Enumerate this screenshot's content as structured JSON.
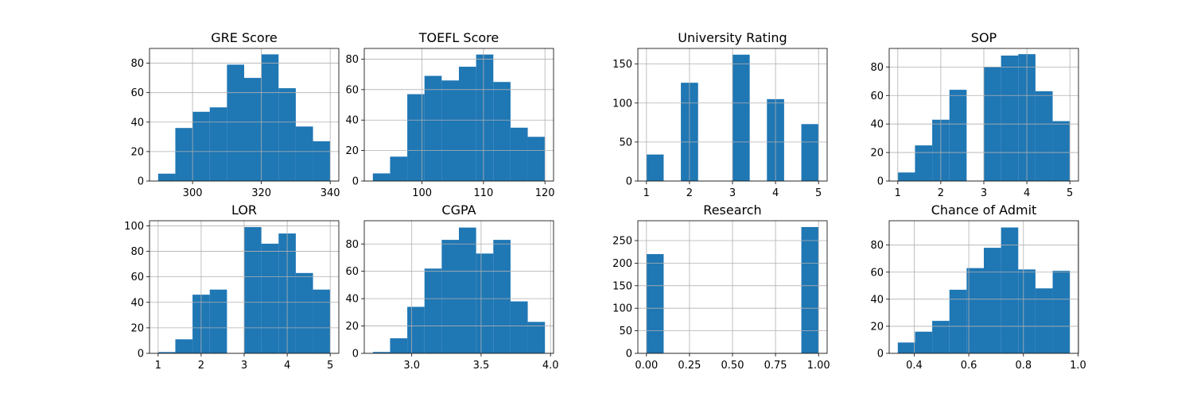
{
  "chart_data": [
    {
      "type": "bar",
      "title": "GRE Score",
      "bins": [
        [
          290,
          295
        ],
        [
          295,
          300
        ],
        [
          300,
          305
        ],
        [
          305,
          310
        ],
        [
          310,
          315
        ],
        [
          315,
          320
        ],
        [
          320,
          325
        ],
        [
          325,
          330
        ],
        [
          330,
          335
        ],
        [
          335,
          340
        ]
      ],
      "values": [
        5,
        36,
        47,
        50,
        79,
        70,
        86,
        63,
        37,
        27
      ],
      "xlim": [
        287.5,
        342.5
      ],
      "ylim": [
        0,
        90
      ],
      "xticks": [
        300,
        320,
        340
      ],
      "yticks": [
        0,
        20,
        40,
        60,
        80
      ],
      "xtick_labels": [
        "300",
        "320",
        "340"
      ],
      "ytick_labels": [
        "0",
        "20",
        "40",
        "60",
        "80"
      ],
      "grid": true,
      "color": "#1f77b4"
    },
    {
      "type": "bar",
      "title": "TOEFL Score",
      "bins": [
        [
          92,
          94.8
        ],
        [
          94.8,
          97.6
        ],
        [
          97.6,
          100.4
        ],
        [
          100.4,
          103.2
        ],
        [
          103.2,
          106
        ],
        [
          106,
          108.8
        ],
        [
          108.8,
          111.6
        ],
        [
          111.6,
          114.4
        ],
        [
          114.4,
          117.2
        ],
        [
          117.2,
          120
        ]
      ],
      "values": [
        5,
        16,
        57,
        69,
        66,
        75,
        83,
        65,
        35,
        29
      ],
      "xlim": [
        90.6,
        121.4
      ],
      "ylim": [
        0,
        87
      ],
      "xticks": [
        100,
        110,
        120
      ],
      "yticks": [
        0,
        20,
        40,
        60,
        80
      ],
      "xtick_labels": [
        "100",
        "110",
        "120"
      ],
      "ytick_labels": [
        "0",
        "20",
        "40",
        "60",
        "80"
      ],
      "grid": true,
      "color": "#1f77b4"
    },
    {
      "type": "bar",
      "title": "University Rating",
      "bins": [
        [
          1,
          1.4
        ],
        [
          1.4,
          1.8
        ],
        [
          1.8,
          2.2
        ],
        [
          2.2,
          2.6
        ],
        [
          2.6,
          3
        ],
        [
          3,
          3.4
        ],
        [
          3.4,
          3.8
        ],
        [
          3.8,
          4.2
        ],
        [
          4.2,
          4.6
        ],
        [
          4.6,
          5
        ]
      ],
      "values": [
        34,
        0,
        126,
        0,
        0,
        162,
        0,
        105,
        0,
        73
      ],
      "xlim": [
        0.8,
        5.2
      ],
      "ylim": [
        0,
        170
      ],
      "xticks": [
        1,
        2,
        3,
        4,
        5
      ],
      "yticks": [
        0,
        50,
        100,
        150
      ],
      "xtick_labels": [
        "1",
        "2",
        "3",
        "4",
        "5"
      ],
      "ytick_labels": [
        "0",
        "50",
        "100",
        "150"
      ],
      "grid": true,
      "color": "#1f77b4"
    },
    {
      "type": "bar",
      "title": "SOP",
      "bins": [
        [
          1,
          1.4
        ],
        [
          1.4,
          1.8
        ],
        [
          1.8,
          2.2
        ],
        [
          2.2,
          2.6
        ],
        [
          2.6,
          3
        ],
        [
          3,
          3.4
        ],
        [
          3.4,
          3.8
        ],
        [
          3.8,
          4.2
        ],
        [
          4.2,
          4.6
        ],
        [
          4.6,
          5
        ]
      ],
      "values": [
        6,
        25,
        43,
        64,
        0,
        80,
        88,
        89,
        63,
        42
      ],
      "xlim": [
        0.8,
        5.2
      ],
      "ylim": [
        0,
        93
      ],
      "xticks": [
        1,
        2,
        3,
        4,
        5
      ],
      "yticks": [
        0,
        20,
        40,
        60,
        80
      ],
      "xtick_labels": [
        "1",
        "2",
        "3",
        "4",
        "5"
      ],
      "ytick_labels": [
        "0",
        "20",
        "40",
        "60",
        "80"
      ],
      "grid": true,
      "color": "#1f77b4"
    },
    {
      "type": "bar",
      "title": "LOR",
      "bins": [
        [
          1,
          1.4
        ],
        [
          1.4,
          1.8
        ],
        [
          1.8,
          2.2
        ],
        [
          2.2,
          2.6
        ],
        [
          2.6,
          3
        ],
        [
          3,
          3.4
        ],
        [
          3.4,
          3.8
        ],
        [
          3.8,
          4.2
        ],
        [
          4.2,
          4.6
        ],
        [
          4.6,
          5
        ]
      ],
      "values": [
        1,
        11,
        46,
        50,
        0,
        99,
        86,
        94,
        63,
        50
      ],
      "xlim": [
        0.8,
        5.2
      ],
      "ylim": [
        0,
        104
      ],
      "xticks": [
        1,
        2,
        3,
        4,
        5
      ],
      "yticks": [
        0,
        20,
        40,
        60,
        80,
        100
      ],
      "xtick_labels": [
        "1",
        "2",
        "3",
        "4",
        "5"
      ],
      "ytick_labels": [
        "0",
        "20",
        "40",
        "60",
        "80",
        "100"
      ],
      "grid": true,
      "color": "#1f77b4"
    },
    {
      "type": "bar",
      "title": "CGPA",
      "bins": [
        [
          2.72,
          2.844
        ],
        [
          2.844,
          2.968
        ],
        [
          2.968,
          3.092
        ],
        [
          3.092,
          3.216
        ],
        [
          3.216,
          3.34
        ],
        [
          3.34,
          3.464
        ],
        [
          3.464,
          3.588
        ],
        [
          3.588,
          3.712
        ],
        [
          3.712,
          3.836
        ],
        [
          3.836,
          3.96
        ]
      ],
      "values": [
        1,
        11,
        34,
        62,
        83,
        92,
        73,
        83,
        38,
        23
      ],
      "xlim": [
        2.658,
        4.022
      ],
      "ylim": [
        0,
        97
      ],
      "xticks": [
        3.0,
        3.5,
        4.0
      ],
      "yticks": [
        0,
        20,
        40,
        60,
        80
      ],
      "xtick_labels": [
        "3.0",
        "3.5",
        "4.0"
      ],
      "ytick_labels": [
        "0",
        "20",
        "40",
        "60",
        "80"
      ],
      "grid": true,
      "color": "#1f77b4"
    },
    {
      "type": "bar",
      "title": "Research",
      "bins": [
        [
          0,
          0.1
        ],
        [
          0.1,
          0.2
        ],
        [
          0.2,
          0.3
        ],
        [
          0.3,
          0.4
        ],
        [
          0.4,
          0.5
        ],
        [
          0.5,
          0.6
        ],
        [
          0.6,
          0.7
        ],
        [
          0.7,
          0.8
        ],
        [
          0.8,
          0.9
        ],
        [
          0.9,
          1
        ]
      ],
      "values": [
        220,
        0,
        0,
        0,
        0,
        0,
        0,
        0,
        0,
        280
      ],
      "xlim": [
        -0.05,
        1.05
      ],
      "ylim": [
        0,
        294
      ],
      "xticks": [
        0,
        0.25,
        0.5,
        0.75,
        1
      ],
      "yticks": [
        0,
        50,
        100,
        150,
        200,
        250
      ],
      "xtick_labels": [
        "0.00",
        "0.25",
        "0.50",
        "0.75",
        "1.00"
      ],
      "ytick_labels": [
        "0",
        "50",
        "100",
        "150",
        "200",
        "250"
      ],
      "grid": true,
      "color": "#1f77b4"
    },
    {
      "type": "bar",
      "title": "Chance of Admit",
      "bins": [
        [
          0.34,
          0.403
        ],
        [
          0.403,
          0.466
        ],
        [
          0.466,
          0.529
        ],
        [
          0.529,
          0.592
        ],
        [
          0.592,
          0.655
        ],
        [
          0.655,
          0.718
        ],
        [
          0.718,
          0.781
        ],
        [
          0.781,
          0.844
        ],
        [
          0.844,
          0.907
        ],
        [
          0.907,
          0.97
        ]
      ],
      "values": [
        8,
        16,
        24,
        47,
        63,
        78,
        93,
        62,
        48,
        61
      ],
      "xlim": [
        0.3085,
        1.0015
      ],
      "ylim": [
        0,
        98
      ],
      "xticks": [
        0.4,
        0.6,
        0.8,
        1.0
      ],
      "yticks": [
        0,
        20,
        40,
        60,
        80
      ],
      "xtick_labels": [
        "0.4",
        "0.6",
        "0.8",
        "1.0"
      ],
      "ytick_labels": [
        "0",
        "20",
        "40",
        "60",
        "80"
      ],
      "grid": true,
      "color": "#1f77b4"
    }
  ]
}
